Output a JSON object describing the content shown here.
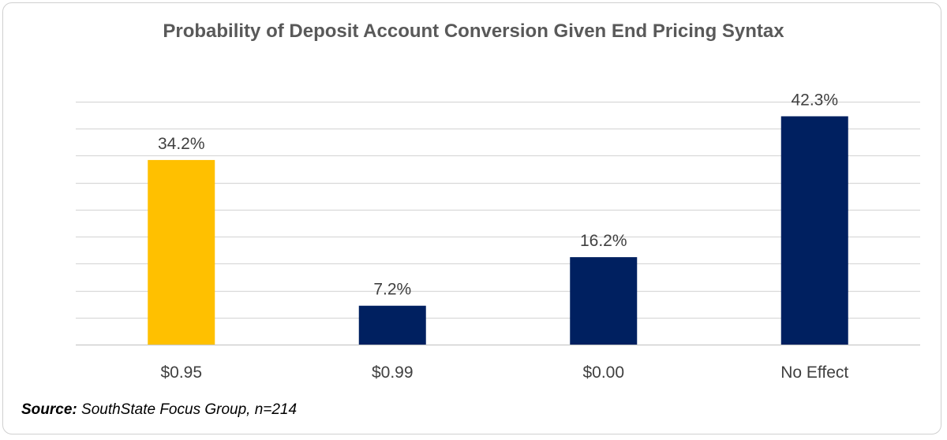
{
  "chart_data": {
    "type": "bar",
    "title": "Probability of Deposit Account Conversion Given End Pricing Syntax",
    "categories": [
      "$0.95",
      "$0.99",
      "$0.00",
      "No Effect"
    ],
    "values": [
      34.2,
      7.2,
      16.2,
      42.3
    ],
    "value_labels": [
      "34.2%",
      "7.2%",
      "16.2%",
      "42.3%"
    ],
    "colors": [
      "#FFC000",
      "#002060",
      "#002060",
      "#002060"
    ],
    "ylim": [
      0,
      45
    ],
    "grid": true,
    "xlabel": "",
    "ylabel": ""
  },
  "source": {
    "label": "Source:",
    "text": " SouthState Focus Group, n=214"
  }
}
